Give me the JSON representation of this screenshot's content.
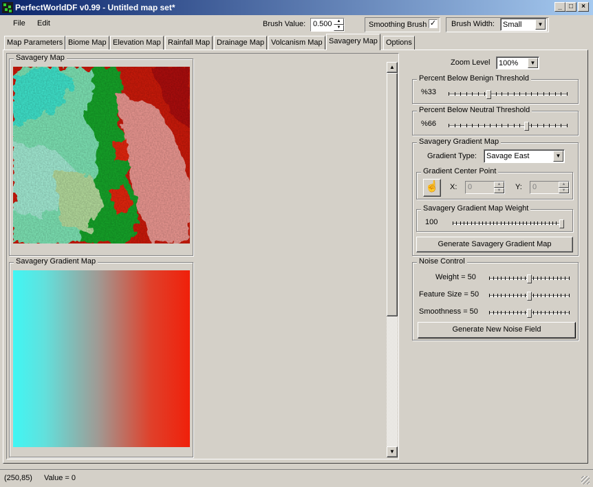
{
  "window": {
    "title": "PerfectWorldDF v0.99 - Untitled map set*",
    "minimize": "_",
    "maximize": "□",
    "close": "×"
  },
  "menu": {
    "file": "File",
    "edit": "Edit"
  },
  "toolbar": {
    "brush_value_label": "Brush Value:",
    "brush_value": "0.500",
    "smoothing_label": "Smoothing Brush",
    "smoothing_checked": "✓",
    "brush_width_label": "Brush Width:",
    "brush_width": "Small"
  },
  "tabs": [
    "Map Parameters",
    "Biome Map",
    "Elevation Map",
    "Rainfall Map",
    "Drainage Map",
    "Volcanism Map",
    "Savagery Map",
    "Options"
  ],
  "active_tab": "Savagery Map",
  "left": {
    "savagery_map_label": "Savagery Map",
    "gradient_map_label": "Savagery Gradient Map"
  },
  "right": {
    "zoom_label": "Zoom Level",
    "zoom_value": "100%",
    "benign": {
      "label": "Percent Below Benign Threshold",
      "value_text": "%33",
      "value": 0.33
    },
    "neutral": {
      "label": "Percent Below Neutral Threshold",
      "value_text": "%66",
      "value": 0.66
    },
    "gradient": {
      "label": "Savagery Gradient Map",
      "type_label": "Gradient Type:",
      "type_value": "Savage East",
      "center_label": "Gradient Center Point",
      "x_label": "X:",
      "x_value": "0",
      "y_label": "Y:",
      "y_value": "0",
      "weight_label": "Savagery Gradient Map Weight",
      "weight_value": "100",
      "weight": 1.0,
      "generate_button": "Generate Savagery Gradient Map"
    },
    "noise": {
      "label": "Noise Control",
      "weight_label": "Weight = 50",
      "weight": 0.5,
      "feature_label": "Feature Size = 50",
      "feature": 0.5,
      "smooth_label": "Smoothness = 50",
      "smooth": 0.5,
      "generate_button": "Generate New Noise Field"
    }
  },
  "status": {
    "coords": "(250,85)",
    "value": "Value = 0"
  },
  "colors": {
    "title_start": "#0a246a",
    "title_end": "#a6caf0",
    "savage": "#e8200a",
    "benign": "#40f0f0"
  }
}
